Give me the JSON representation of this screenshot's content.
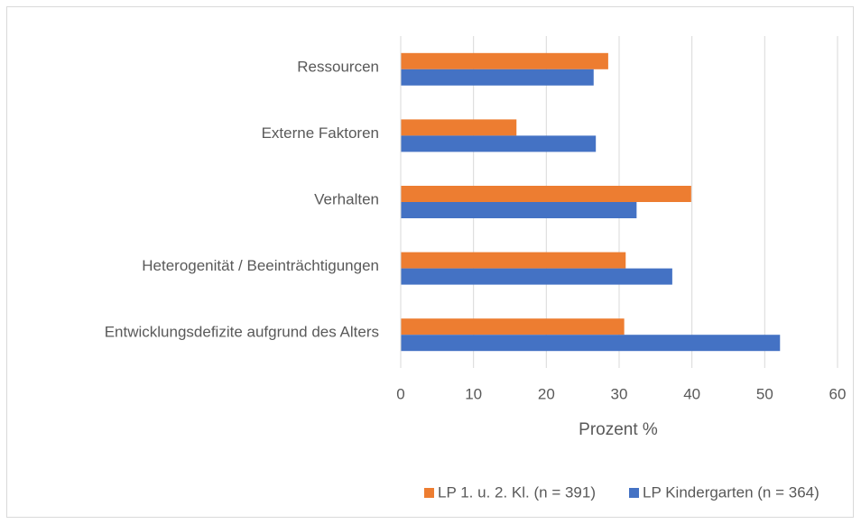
{
  "chart_data": {
    "type": "hbar",
    "categories": [
      "Ressourcen",
      "Externe Faktoren",
      "Verhalten",
      "Heterogenität / Beeinträchtigungen",
      "Entwicklungsdefizite aufgrund des Alters"
    ],
    "series": [
      {
        "name": "LP 1. u. 2. Kl. (n = 391)",
        "color": "#ed7d31",
        "values": [
          28.5,
          15.9,
          39.9,
          30.9,
          30.7
        ]
      },
      {
        "name": "LP Kindergarten (n = 364)",
        "color": "#4472c4",
        "values": [
          26.5,
          26.8,
          32.4,
          37.3,
          52.1
        ]
      }
    ],
    "xlabel": "Prozent %",
    "xlim": [
      0,
      60
    ],
    "xticks": [
      0,
      10,
      20,
      30,
      40,
      50,
      60
    ],
    "grid": true,
    "legend": "bottom"
  }
}
